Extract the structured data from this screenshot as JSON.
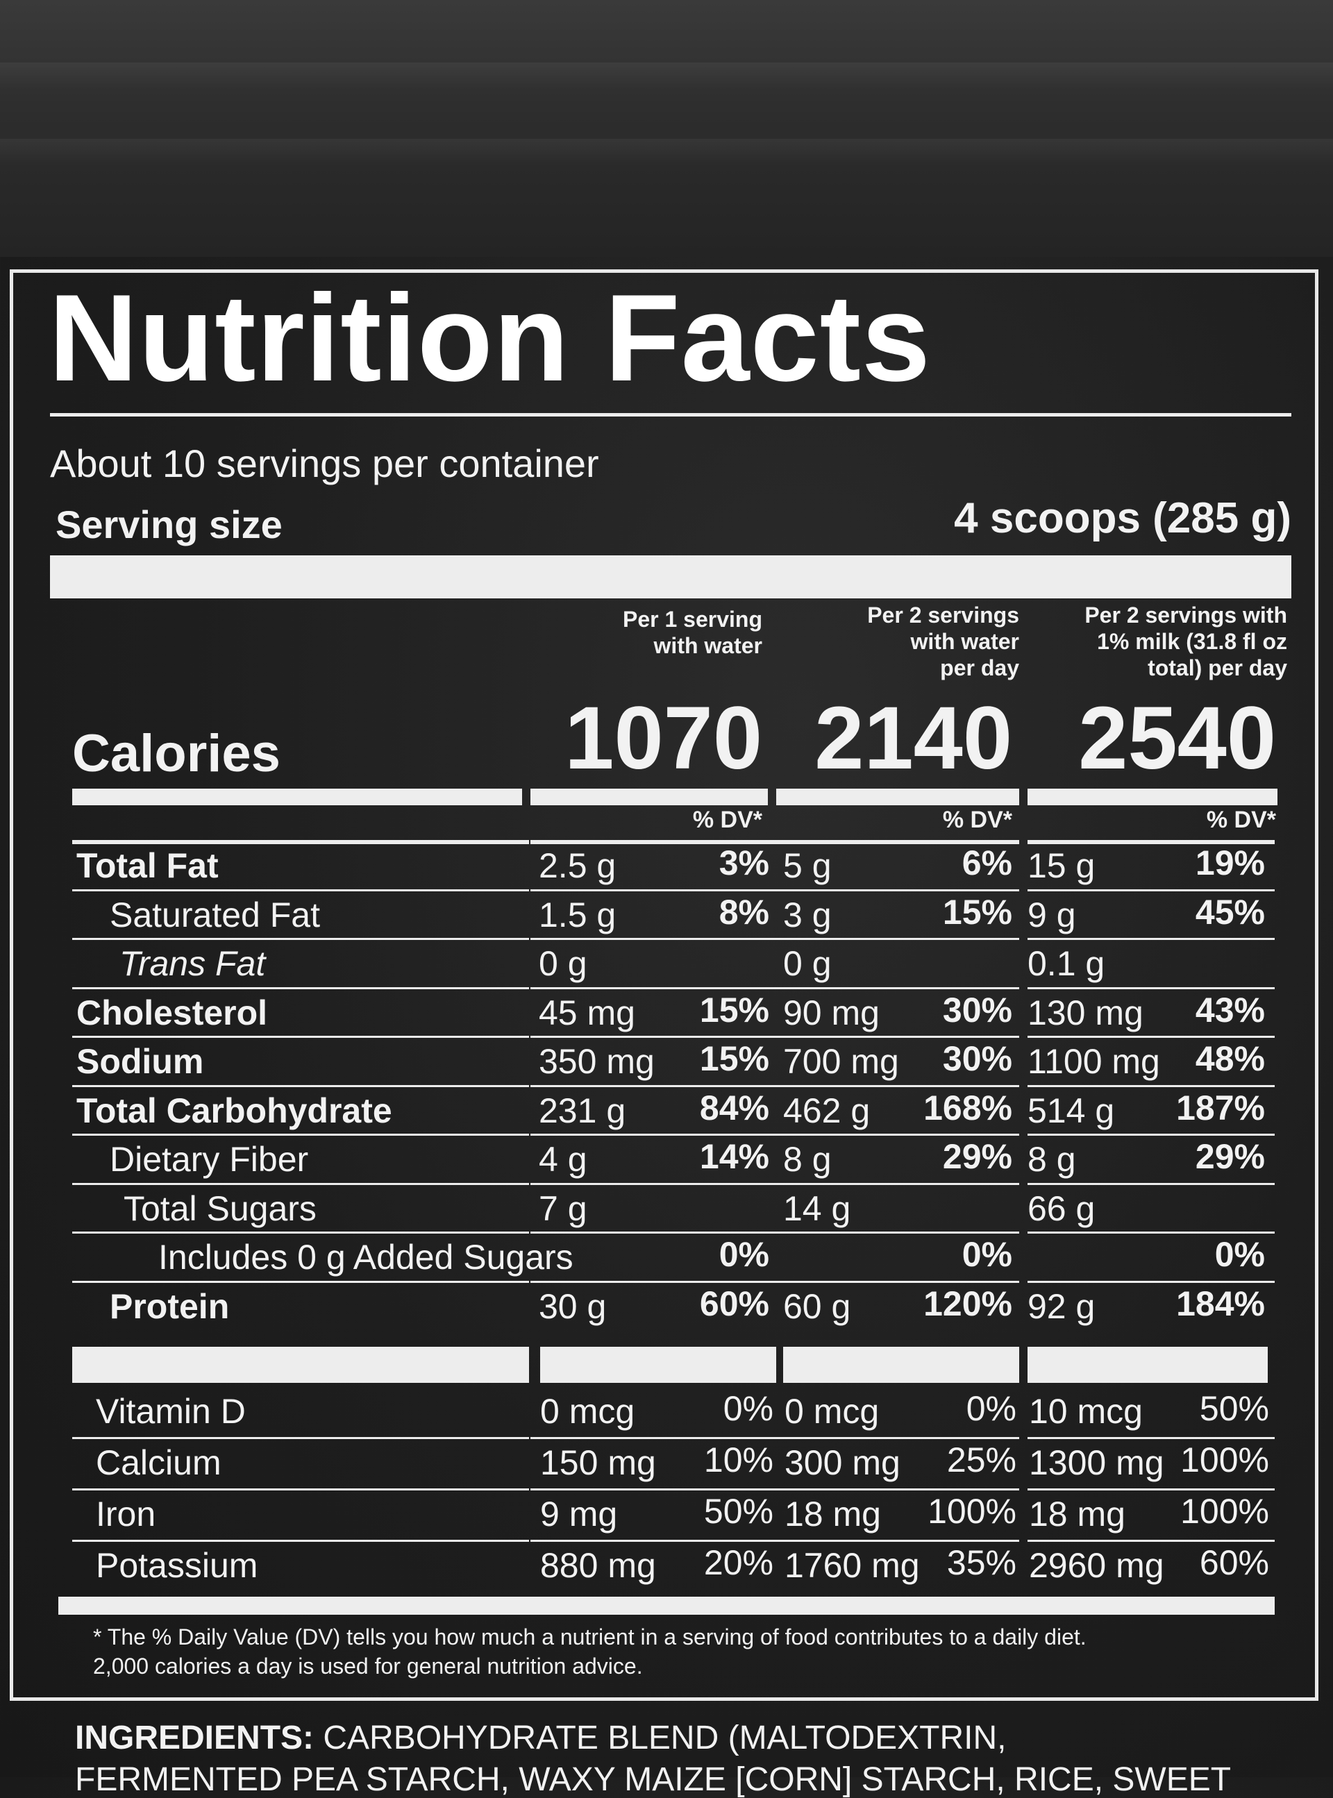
{
  "label": {
    "title": "Nutrition Facts",
    "servings_per_container": "About 10 servings per container",
    "serving_size_label": "Serving size",
    "serving_size_value": "4 scoops (285 g)",
    "columns": [
      {
        "header": [
          "Per 1 serving",
          "with water"
        ],
        "calories": "1070"
      },
      {
        "header": [
          "Per 2 servings",
          "with water",
          "per day"
        ],
        "calories": "2140"
      },
      {
        "header": [
          "Per 2 servings with",
          "1% milk (31.8 fl oz",
          "total) per day"
        ],
        "calories": "2540"
      }
    ],
    "calories_label": "Calories",
    "dv_header": "% DV*",
    "nutrients": [
      {
        "name": "Total Fat",
        "bold": true,
        "indent": 0,
        "values": [
          [
            "2.5 g",
            "3%"
          ],
          [
            "5 g",
            "6%"
          ],
          [
            "15 g",
            "19%"
          ]
        ]
      },
      {
        "name": "Saturated Fat",
        "bold": false,
        "indent": 1,
        "values": [
          [
            "1.5 g",
            "8%"
          ],
          [
            "3 g",
            "15%"
          ],
          [
            "9 g",
            "45%"
          ]
        ]
      },
      {
        "name": "Trans Fat",
        "bold": false,
        "indent": 2,
        "values": [
          [
            "0 g",
            ""
          ],
          [
            "0 g",
            ""
          ],
          [
            "0.1 g",
            ""
          ]
        ]
      },
      {
        "name": "Cholesterol",
        "bold": true,
        "indent": 0,
        "values": [
          [
            "45 mg",
            "15%"
          ],
          [
            "90 mg",
            "30%"
          ],
          [
            "130 mg",
            "43%"
          ]
        ]
      },
      {
        "name": "Sodium",
        "bold": true,
        "indent": 0,
        "values": [
          [
            "350 mg",
            "15%"
          ],
          [
            "700 mg",
            "30%"
          ],
          [
            "1100 mg",
            "48%"
          ]
        ]
      },
      {
        "name": "Total Carbohydrate",
        "bold": true,
        "indent": 0,
        "values": [
          [
            "231 g",
            "84%"
          ],
          [
            "462 g",
            "168%"
          ],
          [
            "514 g",
            "187%"
          ]
        ]
      },
      {
        "name": "Dietary Fiber",
        "bold": false,
        "indent": 1,
        "values": [
          [
            "4 g",
            "14%"
          ],
          [
            "8 g",
            "29%"
          ],
          [
            "8 g",
            "29%"
          ]
        ]
      },
      {
        "name": "Total Sugars",
        "bold": false,
        "indent": 3,
        "values": [
          [
            "7 g",
            ""
          ],
          [
            "14 g",
            ""
          ],
          [
            "66 g",
            ""
          ]
        ]
      },
      {
        "name": "Includes 0 g Added Sugars",
        "bold": false,
        "indent": 4,
        "values": [
          [
            "",
            "0%"
          ],
          [
            "",
            "0%"
          ],
          [
            "",
            "0%"
          ]
        ]
      },
      {
        "name": "Protein",
        "bold": true,
        "indent": 1,
        "values": [
          [
            "30 g",
            "60%"
          ],
          [
            "60 g",
            "120%"
          ],
          [
            "92 g",
            "184%"
          ]
        ]
      }
    ],
    "vitamins": [
      {
        "name": "Vitamin D",
        "values": [
          [
            "0 mcg",
            "0%"
          ],
          [
            "0 mcg",
            "0%"
          ],
          [
            "10 mcg",
            "50%"
          ]
        ]
      },
      {
        "name": "Calcium",
        "values": [
          [
            "150 mg",
            "10%"
          ],
          [
            "300 mg",
            "25%"
          ],
          [
            "1300 mg",
            "100%"
          ]
        ]
      },
      {
        "name": "Iron",
        "values": [
          [
            "9 mg",
            "50%"
          ],
          [
            "18 mg",
            "100%"
          ],
          [
            "18 mg",
            "100%"
          ]
        ]
      },
      {
        "name": "Potassium",
        "values": [
          [
            "880 mg",
            "20%"
          ],
          [
            "1760 mg",
            "35%"
          ],
          [
            "2960 mg",
            "60%"
          ]
        ]
      }
    ],
    "footnote": [
      "* The % Daily Value (DV) tells you how much a nutrient in a serving of food contributes to a daily diet.",
      "2,000 calories a day is used for general nutrition advice."
    ],
    "ingredients_label": "INGREDIENTS:",
    "ingredients_text": "CARBOHYDRATE BLEND (MALTODEXTRIN,",
    "ingredients_text_2": "FERMENTED PEA STARCH, WAXY MAIZE [CORN] STARCH, RICE, SWEET"
  }
}
